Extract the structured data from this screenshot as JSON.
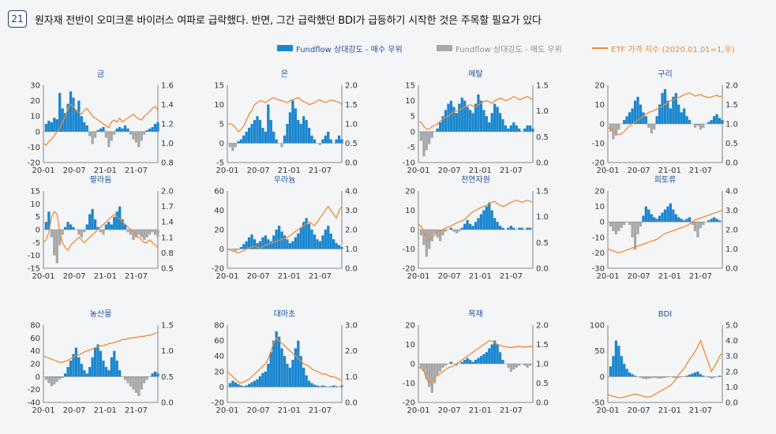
{
  "figure": {
    "number": "21",
    "title": "원자재 전반이 오미크론 바이러스 여파로 급락했다. 반면, 그간 급락했던 BDI가 급등하기 시작한 것은 주목할 필요가 있다"
  },
  "legend": {
    "buy": "Fundflow 상대강도 - 매수 우위",
    "sell": "Fundflow 상대강도 - 매도 우위",
    "etf": "ETF 가격 지수 (2020.01.01=1,우)"
  },
  "colors": {
    "buy": "#1a86cf",
    "sell": "#a6a8ab",
    "etf": "#ee8a34",
    "title": "#1f4e9c",
    "axis": "#333333"
  },
  "chart_data": [
    {
      "type": "area",
      "title": "금",
      "x_ticks": [
        "20-01",
        "20-07",
        "21-01",
        "21-07"
      ],
      "ylim_left": [
        -20,
        30
      ],
      "yticks_left": [
        "30",
        "20",
        "10",
        "0",
        "-10",
        "-20"
      ],
      "ylim_right": [
        0.8,
        1.6
      ],
      "yticks_right": [
        "1.6",
        "1.4",
        "1.2",
        "1.0",
        "0.8"
      ],
      "flow": [
        0,
        5,
        7,
        6,
        9,
        8,
        25,
        15,
        12,
        18,
        26,
        22,
        14,
        20,
        10,
        6,
        4,
        -3,
        -8,
        -4,
        1,
        2,
        3,
        -4,
        -10,
        -6,
        -2,
        2,
        3,
        2,
        4,
        2,
        -2,
        -5,
        -7,
        -10,
        -6,
        -2,
        1,
        2,
        3,
        5,
        6
      ],
      "etf": [
        1.0,
        0.98,
        1.02,
        1.04,
        1.08,
        1.12,
        1.16,
        1.22,
        1.28,
        1.36,
        1.4,
        1.38,
        1.34,
        1.32,
        1.3,
        1.34,
        1.36,
        1.32,
        1.28,
        1.26,
        1.24,
        1.22,
        1.2,
        1.18,
        1.16,
        1.22,
        1.24,
        1.22,
        1.26,
        1.22,
        1.24,
        1.26,
        1.28,
        1.3,
        1.27,
        1.25,
        1.24,
        1.28,
        1.3,
        1.33,
        1.36,
        1.38,
        1.34
      ]
    },
    {
      "type": "area",
      "title": "은",
      "x_ticks": [
        "20-01",
        "20-07",
        "21-01",
        "21-07"
      ],
      "ylim_left": [
        -5,
        15
      ],
      "yticks_left": [
        "15",
        "10",
        "5",
        "0",
        "-5"
      ],
      "ylim_right": [
        0.0,
        2.0
      ],
      "yticks_right": [
        "2.0",
        "1.5",
        "1.0",
        "0.5",
        "0.0"
      ],
      "flow": [
        0,
        -1,
        -2,
        -1,
        0.5,
        1,
        2,
        3,
        4,
        5,
        6,
        7,
        6,
        4,
        3,
        10,
        6,
        3,
        1,
        0,
        -1,
        2,
        5,
        8,
        11,
        9,
        6,
        5,
        7,
        6,
        4,
        2,
        1,
        0,
        -0.5,
        1,
        2,
        3,
        1,
        0,
        1,
        2,
        1
      ],
      "etf": [
        1.0,
        1.0,
        0.98,
        0.9,
        0.8,
        0.85,
        0.95,
        1.1,
        1.25,
        1.35,
        1.5,
        1.55,
        1.6,
        1.58,
        1.55,
        1.6,
        1.65,
        1.68,
        1.64,
        1.62,
        1.6,
        1.58,
        1.55,
        1.6,
        1.62,
        1.65,
        1.68,
        1.62,
        1.58,
        1.55,
        1.5,
        1.52,
        1.55,
        1.6,
        1.62,
        1.58,
        1.55,
        1.58,
        1.62,
        1.6,
        1.58,
        1.56,
        1.5
      ]
    },
    {
      "type": "area",
      "title": "메탈",
      "x_ticks": [
        "20-01",
        "20-07",
        "21-01",
        "21-07"
      ],
      "ylim_left": [
        -10,
        15
      ],
      "yticks_left": [
        "15",
        "10",
        "5",
        "0",
        "-5",
        "-10"
      ],
      "ylim_right": [
        0.0,
        1.5
      ],
      "yticks_right": [
        "1.5",
        "1.0",
        "0.5",
        "0.0"
      ],
      "flow": [
        0,
        -3,
        -8,
        -6,
        -4,
        -2,
        0,
        1,
        3,
        5,
        7,
        9,
        10,
        8,
        6,
        9,
        11,
        10,
        8,
        7,
        6,
        9,
        12,
        10,
        7,
        5,
        3,
        6,
        9,
        8,
        6,
        4,
        2,
        1,
        2,
        3,
        2,
        1,
        0,
        1,
        2,
        2,
        1
      ],
      "etf": [
        0.8,
        0.78,
        0.7,
        0.65,
        0.65,
        0.7,
        0.72,
        0.75,
        0.8,
        0.85,
        0.88,
        0.9,
        0.95,
        0.98,
        1.0,
        1.02,
        1.05,
        1.08,
        1.1,
        1.12,
        1.1,
        1.08,
        1.12,
        1.15,
        1.18,
        1.2,
        1.18,
        1.15,
        1.2,
        1.22,
        1.25,
        1.23,
        1.2,
        1.22,
        1.25,
        1.28,
        1.25,
        1.22,
        1.24,
        1.26,
        1.28,
        1.25,
        1.22
      ]
    },
    {
      "type": "area",
      "title": "구리",
      "x_ticks": [
        "20-01",
        "20-07",
        "21-01",
        "21-07"
      ],
      "ylim_left": [
        -20,
        20
      ],
      "yticks_left": [
        "20",
        "10",
        "0",
        "-10",
        "-20"
      ],
      "ylim_right": [
        0.0,
        2.0
      ],
      "yticks_right": [
        "2.0",
        "1.5",
        "1.0",
        "0.5",
        "0.0"
      ],
      "flow": [
        0,
        -4,
        -8,
        -6,
        -3,
        0,
        2,
        4,
        6,
        8,
        12,
        14,
        10,
        6,
        4,
        -2,
        -5,
        -3,
        4,
        10,
        16,
        18,
        12,
        8,
        14,
        16,
        10,
        6,
        8,
        4,
        2,
        0,
        -2,
        -1,
        -3,
        -2,
        0,
        1,
        2,
        4,
        5,
        3,
        2
      ],
      "etf": [
        0.9,
        0.88,
        0.82,
        0.75,
        0.72,
        0.75,
        0.8,
        0.88,
        0.95,
        1.0,
        1.05,
        1.1,
        1.15,
        1.2,
        1.25,
        1.3,
        1.32,
        1.35,
        1.38,
        1.42,
        1.45,
        1.5,
        1.55,
        1.6,
        1.62,
        1.65,
        1.68,
        1.72,
        1.75,
        1.78,
        1.8,
        1.76,
        1.72,
        1.74,
        1.76,
        1.72,
        1.7,
        1.68,
        1.7,
        1.72,
        1.74,
        1.7,
        1.72
      ]
    },
    {
      "type": "area",
      "title": "팔라듐",
      "x_ticks": [
        "20-01",
        "20-07",
        "21-01",
        "21-07"
      ],
      "ylim_left": [
        -15,
        15
      ],
      "yticks_left": [
        "15",
        "10",
        "5",
        "0",
        "-5",
        "-10",
        "-15"
      ],
      "ylim_right": [
        0.5,
        2.0
      ],
      "yticks_right": [
        "2.0",
        "1.7",
        "1.4",
        "1.1",
        "0.8",
        "0.5"
      ],
      "flow": [
        0,
        3,
        7,
        -3,
        -10,
        -13,
        -6,
        -2,
        1,
        3,
        2,
        1,
        0,
        -2,
        -3,
        -1,
        2,
        6,
        8,
        4,
        1,
        -1,
        -2,
        2,
        3,
        2,
        5,
        7,
        9,
        4,
        2,
        -1,
        -2,
        -4,
        -3,
        -2,
        -3,
        -4,
        -3,
        -2,
        -1,
        -2,
        -3
      ],
      "etf": [
        1.0,
        1.05,
        1.2,
        1.5,
        1.6,
        1.55,
        1.2,
        1.0,
        0.9,
        0.85,
        0.95,
        1.0,
        1.05,
        1.1,
        1.05,
        1.0,
        1.05,
        1.1,
        1.15,
        1.2,
        1.25,
        1.3,
        1.35,
        1.4,
        1.45,
        1.5,
        1.55,
        1.5,
        1.45,
        1.4,
        1.35,
        1.3,
        1.25,
        1.2,
        1.15,
        1.1,
        1.05,
        1.0,
        1.0,
        1.05,
        1.0,
        0.95,
        0.9
      ]
    },
    {
      "type": "area",
      "title": "우라늄",
      "x_ticks": [
        "20-01",
        "20-07",
        "21-01",
        "21-07"
      ],
      "ylim_left": [
        -20,
        60
      ],
      "yticks_left": [
        "60",
        "40",
        "20",
        "0",
        "-20"
      ],
      "ylim_right": [
        0.0,
        4.0
      ],
      "yticks_right": [
        "4.0",
        "3.0",
        "2.0",
        "1.0",
        "0.0"
      ],
      "flow": [
        0,
        0,
        -1,
        -2,
        -1,
        2,
        5,
        8,
        12,
        15,
        10,
        6,
        8,
        12,
        14,
        10,
        8,
        14,
        20,
        24,
        18,
        14,
        10,
        6,
        8,
        12,
        16,
        22,
        28,
        32,
        26,
        20,
        15,
        10,
        8,
        14,
        20,
        24,
        16,
        10,
        6,
        4,
        2
      ],
      "etf": [
        1.0,
        0.95,
        0.9,
        0.85,
        0.8,
        0.85,
        0.9,
        1.0,
        1.05,
        1.1,
        1.15,
        1.1,
        1.05,
        1.1,
        1.2,
        1.25,
        1.3,
        1.35,
        1.4,
        1.45,
        1.5,
        1.55,
        1.6,
        1.7,
        1.8,
        1.9,
        2.0,
        2.1,
        2.2,
        2.3,
        2.4,
        2.3,
        2.2,
        2.4,
        2.6,
        2.8,
        3.0,
        3.2,
        3.0,
        2.8,
        2.6,
        3.0,
        3.2
      ]
    },
    {
      "type": "area",
      "title": "천연자원",
      "x_ticks": [
        "20-01",
        "20-07",
        "21-01",
        "21-07"
      ],
      "ylim_left": [
        -20,
        20
      ],
      "yticks_left": [
        "20",
        "10",
        "0",
        "-10",
        "-20"
      ],
      "ylim_right": [
        0.0,
        1.5
      ],
      "yticks_right": [
        "1.5",
        "1.0",
        "0.5",
        "0.0"
      ],
      "flow": [
        0,
        -3,
        -8,
        -14,
        -10,
        -6,
        -2,
        -4,
        -6,
        -3,
        -1,
        0,
        1,
        -1,
        -2,
        -1,
        1,
        3,
        5,
        3,
        2,
        4,
        6,
        8,
        10,
        12,
        14,
        10,
        6,
        4,
        2,
        1,
        0,
        1,
        2,
        1,
        0,
        1,
        1,
        0,
        1,
        1,
        0
      ],
      "etf": [
        0.85,
        0.82,
        0.72,
        0.6,
        0.55,
        0.6,
        0.65,
        0.7,
        0.72,
        0.75,
        0.78,
        0.8,
        0.82,
        0.85,
        0.88,
        0.9,
        0.92,
        0.95,
        1.0,
        1.05,
        1.1,
        1.12,
        1.15,
        1.18,
        1.2,
        1.22,
        1.25,
        1.28,
        1.3,
        1.25,
        1.22,
        1.2,
        1.22,
        1.25,
        1.28,
        1.3,
        1.32,
        1.3,
        1.28,
        1.3,
        1.32,
        1.3,
        1.28
      ]
    },
    {
      "type": "area",
      "title": "희토류",
      "x_ticks": [
        "20-01",
        "20-07",
        "21-01",
        "21-07"
      ],
      "ylim_left": [
        -30,
        20
      ],
      "yticks_left": [
        "20",
        "10",
        "0",
        "-10",
        "-20",
        "-30"
      ],
      "ylim_right": [
        0.0,
        4.0
      ],
      "yticks_right": [
        "4.0",
        "3.0",
        "2.0",
        "1.0",
        "0.0"
      ],
      "flow": [
        0,
        -3,
        -6,
        -8,
        -6,
        -4,
        -2,
        0,
        -2,
        -10,
        -18,
        -8,
        -3,
        4,
        10,
        8,
        5,
        3,
        2,
        4,
        6,
        8,
        10,
        12,
        8,
        5,
        3,
        2,
        1,
        2,
        3,
        -2,
        -6,
        -10,
        -4,
        -2,
        0,
        1,
        2,
        3,
        2,
        1,
        0
      ],
      "etf": [
        1.0,
        0.95,
        0.9,
        0.85,
        0.8,
        0.85,
        0.9,
        0.95,
        1.0,
        1.05,
        1.1,
        1.15,
        1.2,
        1.25,
        1.3,
        1.35,
        1.4,
        1.45,
        1.5,
        1.6,
        1.7,
        1.8,
        1.85,
        1.9,
        1.95,
        2.0,
        2.05,
        2.1,
        2.15,
        2.2,
        2.3,
        2.4,
        2.5,
        2.55,
        2.6,
        2.65,
        2.7,
        2.75,
        2.8,
        2.85,
        2.9,
        2.95,
        3.0
      ]
    },
    {
      "type": "area",
      "title": "농산물",
      "x_ticks": [
        "20-01",
        "20-07",
        "21-01",
        "21-07"
      ],
      "ylim_left": [
        -40,
        80
      ],
      "yticks_left": [
        "80",
        "60",
        "40",
        "20",
        "0",
        "-20",
        "-40"
      ],
      "ylim_right": [
        0.0,
        1.5
      ],
      "yticks_right": [
        "1.5",
        "1.0",
        "0.5",
        "0.0"
      ],
      "flow": [
        0,
        -5,
        -10,
        -15,
        -12,
        -8,
        -4,
        -2,
        5,
        15,
        25,
        35,
        45,
        30,
        20,
        10,
        5,
        15,
        30,
        45,
        50,
        40,
        25,
        15,
        10,
        30,
        40,
        25,
        10,
        0,
        -5,
        -10,
        -15,
        -20,
        -25,
        -30,
        -20,
        -10,
        -5,
        0,
        5,
        8,
        5
      ],
      "etf": [
        0.9,
        0.88,
        0.86,
        0.84,
        0.82,
        0.8,
        0.78,
        0.78,
        0.8,
        0.82,
        0.85,
        0.88,
        0.9,
        0.92,
        0.95,
        0.98,
        1.0,
        1.02,
        1.04,
        1.06,
        1.08,
        1.1,
        1.1,
        1.12,
        1.14,
        1.15,
        1.16,
        1.18,
        1.2,
        1.22,
        1.22,
        1.24,
        1.25,
        1.26,
        1.26,
        1.27,
        1.28,
        1.28,
        1.3,
        1.3,
        1.32,
        1.34,
        1.36
      ]
    },
    {
      "type": "area",
      "title": "대마초",
      "x_ticks": [
        "20-01",
        "20-07",
        "21-01",
        "21-07"
      ],
      "ylim_left": [
        -20,
        80
      ],
      "yticks_left": [
        "80",
        "60",
        "40",
        "20",
        "0",
        "-20"
      ],
      "ylim_right": [
        0.0,
        3.0
      ],
      "yticks_right": [
        "3.0",
        "2.0",
        "1.0",
        "0.0"
      ],
      "flow": [
        0,
        5,
        8,
        6,
        4,
        2,
        1,
        2,
        4,
        6,
        8,
        10,
        14,
        18,
        20,
        30,
        45,
        60,
        72,
        65,
        50,
        40,
        30,
        25,
        35,
        50,
        60,
        40,
        25,
        15,
        8,
        5,
        3,
        2,
        1,
        2,
        1,
        0,
        1,
        2,
        1,
        0,
        2
      ],
      "etf": [
        1.2,
        1.1,
        1.0,
        0.9,
        0.8,
        0.75,
        0.8,
        0.85,
        0.9,
        1.0,
        1.1,
        1.2,
        1.3,
        1.4,
        1.5,
        1.7,
        2.0,
        2.3,
        2.5,
        2.4,
        2.3,
        2.2,
        2.1,
        2.0,
        1.9,
        1.8,
        1.7,
        1.6,
        1.5,
        1.45,
        1.4,
        1.3,
        1.25,
        1.2,
        1.15,
        1.1,
        1.1,
        1.05,
        1.0,
        1.0,
        0.95,
        0.9,
        0.85
      ]
    },
    {
      "type": "area",
      "title": "목재",
      "x_ticks": [
        "20-01",
        "20-07",
        "21-01",
        "21-07"
      ],
      "ylim_left": [
        -20,
        20
      ],
      "yticks_left": [
        "20",
        "10",
        "0",
        "-10",
        "-20"
      ],
      "ylim_right": [
        0.0,
        2.0
      ],
      "yticks_right": [
        "2.0",
        "1.5",
        "1.0",
        "0.5",
        "0.0"
      ],
      "flow": [
        0,
        -2,
        -4,
        -8,
        -12,
        -15,
        -10,
        -6,
        -4,
        -2,
        -1,
        0,
        1,
        0,
        -1,
        0,
        1,
        2,
        3,
        2,
        1,
        2,
        3,
        4,
        5,
        6,
        8,
        10,
        12,
        10,
        6,
        2,
        0,
        -2,
        -4,
        -3,
        -2,
        -1,
        0,
        -1,
        -2,
        -1,
        0
      ],
      "etf": [
        0.9,
        0.88,
        0.82,
        0.6,
        0.5,
        0.55,
        0.65,
        0.7,
        0.75,
        0.8,
        0.85,
        0.9,
        0.92,
        0.95,
        1.0,
        1.05,
        1.1,
        1.15,
        1.2,
        1.25,
        1.3,
        1.35,
        1.4,
        1.45,
        1.5,
        1.55,
        1.6,
        1.58,
        1.55,
        1.5,
        1.48,
        1.45,
        1.44,
        1.43,
        1.42,
        1.43,
        1.44,
        1.45,
        1.44,
        1.43,
        1.44,
        1.45,
        1.44
      ]
    },
    {
      "type": "area",
      "title": "BDI",
      "x_ticks": [
        "20-01",
        "20-07",
        "21-01",
        "21-07"
      ],
      "ylim_left": [
        -50,
        100
      ],
      "yticks_left": [
        "100",
        "50",
        "0",
        "-50"
      ],
      "ylim_right": [
        0.0,
        5.0
      ],
      "yticks_right": [
        "5.0",
        "4.0",
        "3.0",
        "2.0",
        "1.0",
        "0.0"
      ],
      "flow": [
        0,
        20,
        40,
        70,
        60,
        40,
        25,
        15,
        8,
        5,
        2,
        0,
        -2,
        -4,
        -5,
        -4,
        -3,
        -2,
        -3,
        -4,
        -3,
        -2,
        -1,
        0,
        -2,
        -3,
        -2,
        -1,
        0,
        2,
        4,
        6,
        8,
        10,
        5,
        2,
        0,
        -2,
        -4,
        -2,
        0,
        2,
        0
      ],
      "etf": [
        0.5,
        0.45,
        0.4,
        0.35,
        0.3,
        0.3,
        0.35,
        0.4,
        0.45,
        0.5,
        0.55,
        0.5,
        0.45,
        0.4,
        0.35,
        0.35,
        0.4,
        0.5,
        0.6,
        0.7,
        0.8,
        0.9,
        1.0,
        1.1,
        1.3,
        1.5,
        1.8,
        2.0,
        2.2,
        2.5,
        2.8,
        3.0,
        3.3,
        3.6,
        4.0,
        3.5,
        3.0,
        2.5,
        2.0,
        2.3,
        2.6,
        3.0,
        3.2
      ]
    }
  ]
}
